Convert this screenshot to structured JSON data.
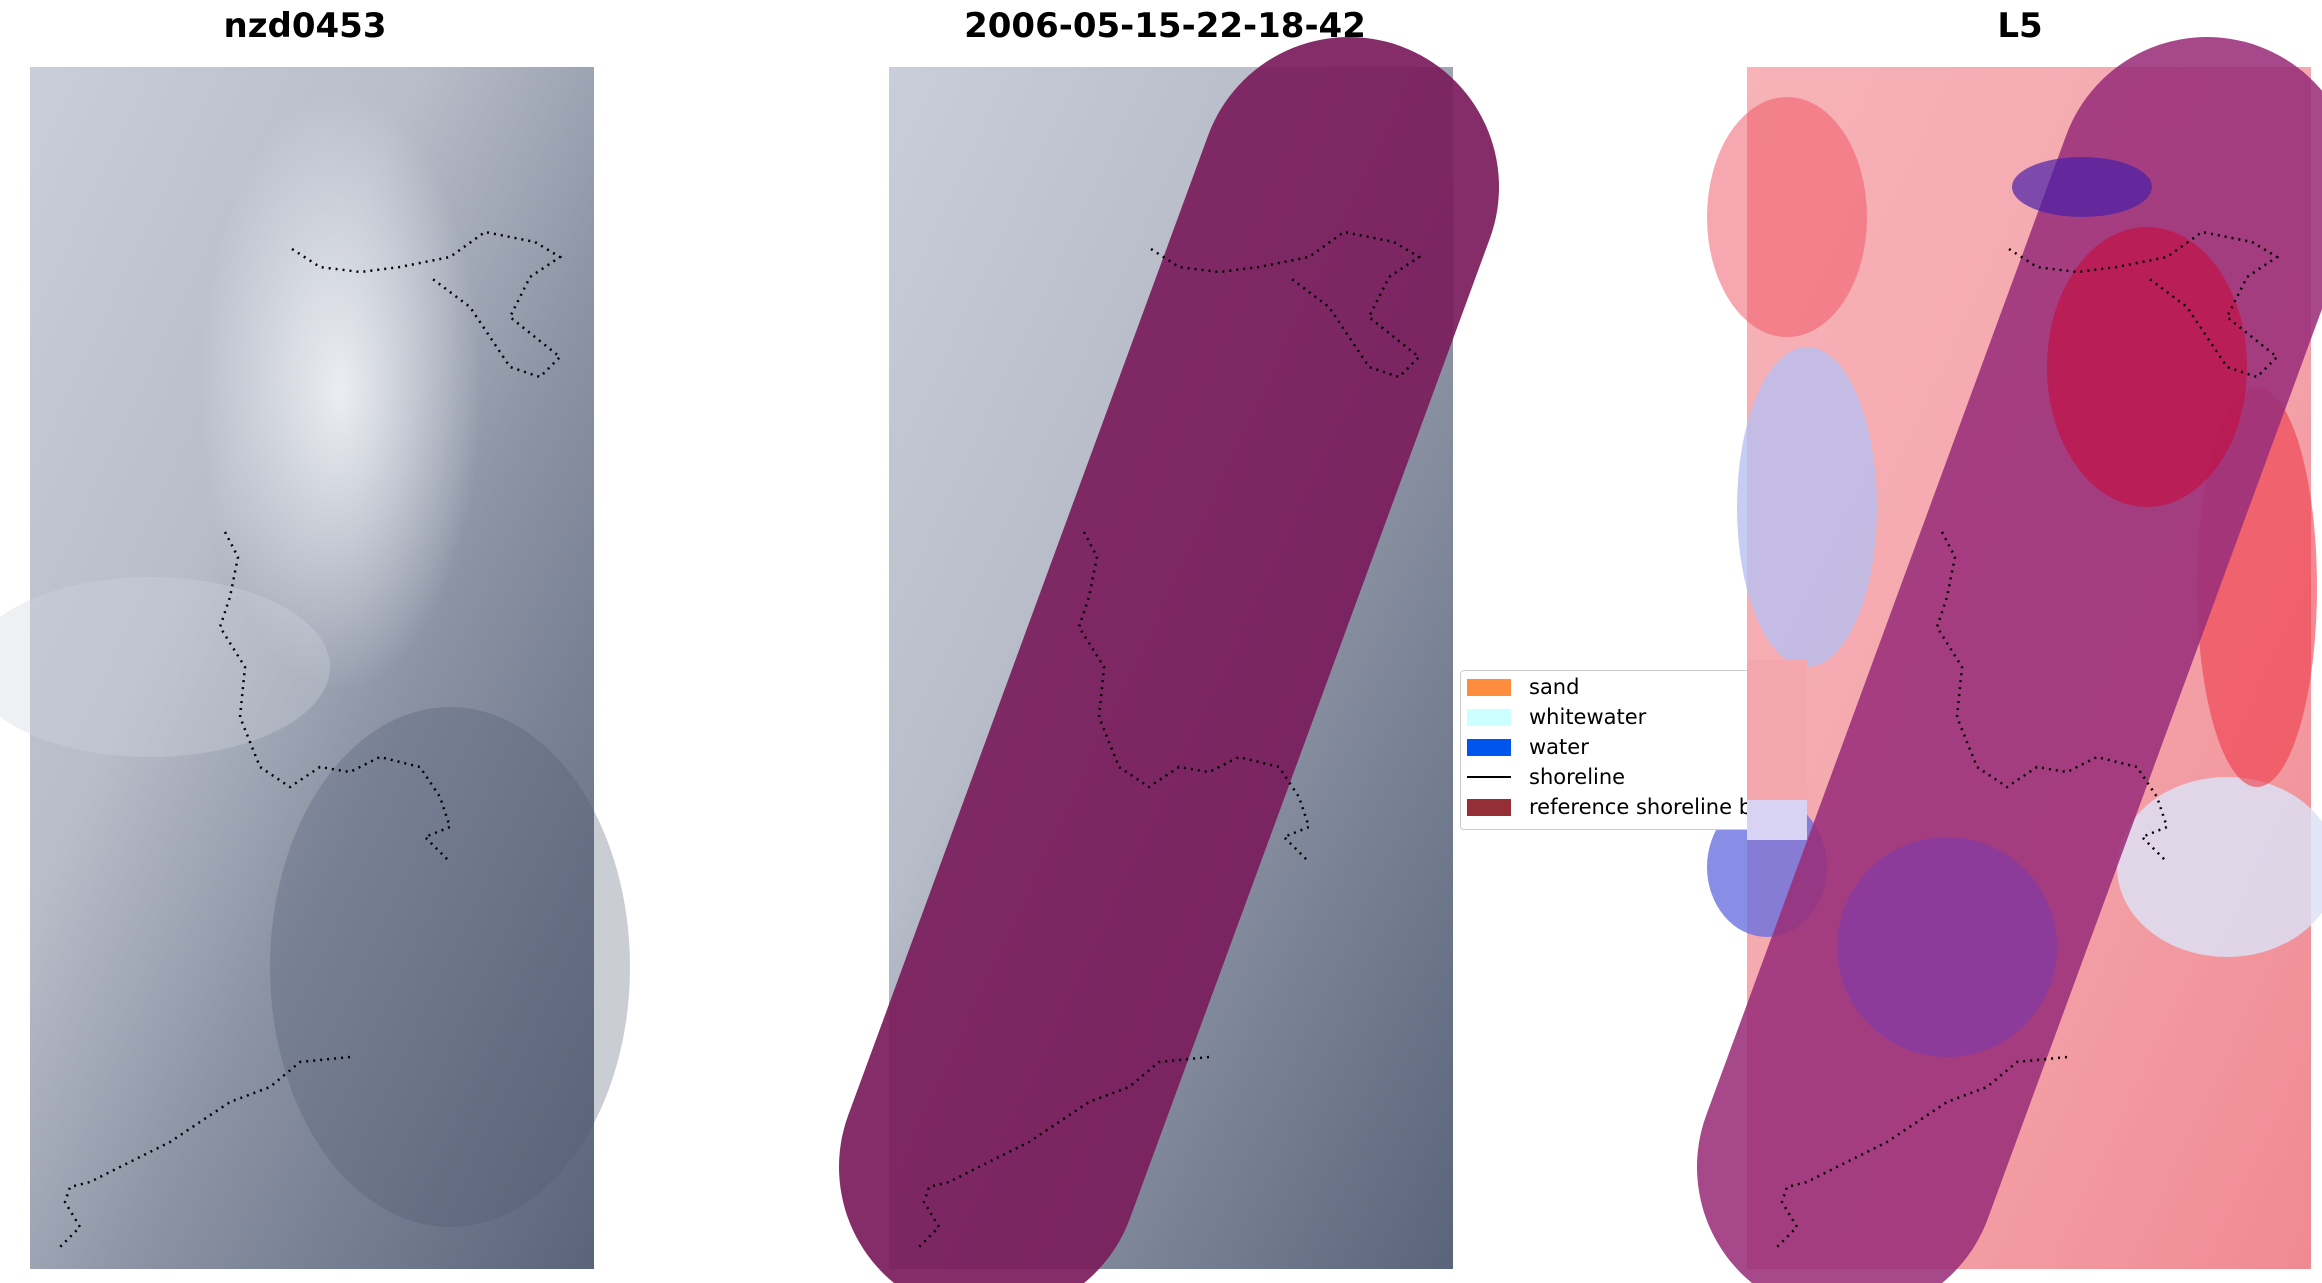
{
  "panels": [
    {
      "title": "nzd0453"
    },
    {
      "title": "2006-05-15-22-18-42"
    },
    {
      "title": "L5"
    }
  ],
  "legend": {
    "items": [
      {
        "label": "sand",
        "kind": "patch",
        "color": "#ff8c3c"
      },
      {
        "label": "whitewater",
        "kind": "patch",
        "color": "#ccffff"
      },
      {
        "label": "water",
        "kind": "patch",
        "color": "#0055ee"
      },
      {
        "label": "shoreline",
        "kind": "line",
        "color": "#000000"
      },
      {
        "label": "reference shoreline b",
        "kind": "patch",
        "color": "#952f35"
      }
    ]
  },
  "colors": {
    "buffer_overlay": "#7a1c5c",
    "shoreline": "#000000",
    "index_positive": "#e8001c",
    "index_negative": "#3c3cd8"
  }
}
